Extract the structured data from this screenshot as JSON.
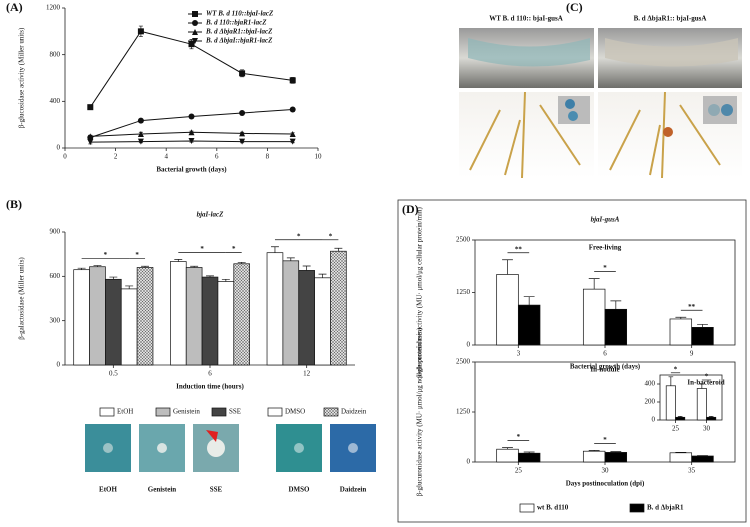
{
  "panel_labels": [
    "(A)",
    "(B)",
    "(C)",
    "(D)"
  ],
  "panel_c": {
    "captions": [
      "WT B. d 110:: bjaI-gusA",
      "B. d ΔbjaR1:: bjaI-gusA"
    ]
  },
  "panel_b_photos": {
    "captions": [
      "EtOH",
      "Genistein",
      "SSE",
      "DMSO",
      "Daidzein"
    ]
  },
  "chart_data": [
    {
      "type": "line",
      "xlabel": "Bacterial growth  (days)",
      "ylabel": "β-glucosidase activity (Miller units)",
      "x": [
        1,
        3,
        5,
        7,
        9
      ],
      "xlim": [
        0,
        10
      ],
      "xticks": [
        0,
        2,
        4,
        6,
        8,
        10
      ],
      "ylim": [
        0,
        1200
      ],
      "yticks": [
        0,
        400,
        800,
        1200
      ],
      "legend": "upper right",
      "series": [
        {
          "name": "WT B. d 110::bjaI-lacZ",
          "marker": "square",
          "color": "#111111",
          "values": [
            350,
            1000,
            890,
            640,
            580
          ],
          "errors": [
            15,
            45,
            40,
            30,
            25
          ]
        },
        {
          "name": "B. d 110::bjaR1-lacZ",
          "marker": "circle",
          "color": "#111111",
          "values": [
            90,
            235,
            270,
            300,
            330
          ],
          "errors": [
            10,
            10,
            15,
            10,
            10
          ]
        },
        {
          "name": "B. d ΔbjaR1::bjaI-lacZ",
          "marker": "triangle-up",
          "color": "#111111",
          "values": [
            100,
            120,
            135,
            125,
            120
          ],
          "errors": [
            10,
            15,
            10,
            10,
            10
          ]
        },
        {
          "name": "B. d ΔbjaI::bjaR1-lacZ",
          "marker": "triangle-down",
          "color": "#111111",
          "values": [
            50,
            55,
            60,
            55,
            55
          ],
          "errors": [
            15,
            10,
            10,
            10,
            10
          ]
        }
      ]
    },
    {
      "type": "bar",
      "title": "bjaI-lacZ",
      "xlabel": "Induction time (hours)",
      "ylabel": "β-galactosidase (Miller units)",
      "categories": [
        "0.5",
        "6",
        "12"
      ],
      "ylim": [
        0,
        900
      ],
      "yticks": [
        0,
        300,
        600,
        900
      ],
      "legend": "below",
      "annotations": [
        "*",
        "*",
        "*",
        "*",
        "*",
        "*"
      ],
      "series": [
        {
          "name": "EtOH",
          "color": "#ffffff",
          "values": [
            645,
            700,
            760
          ],
          "errors": [
            10,
            15,
            40
          ]
        },
        {
          "name": "Genistein",
          "color": "#bdbdbd",
          "values": [
            665,
            660,
            705
          ],
          "errors": [
            8,
            8,
            20
          ]
        },
        {
          "name": "SSE",
          "color": "#444444",
          "values": [
            580,
            595,
            640
          ],
          "errors": [
            15,
            8,
            30
          ]
        },
        {
          "name": "DMSO",
          "color": "#ffffff",
          "values": [
            515,
            565,
            590
          ],
          "errors": [
            20,
            15,
            25
          ]
        },
        {
          "name": "Daidzein",
          "color": "#dddddd",
          "pattern": "crosshatch",
          "values": [
            660,
            685,
            770
          ],
          "errors": [
            8,
            10,
            20
          ]
        }
      ]
    },
    {
      "type": "bar",
      "title": "bjaI-gusA",
      "subtitle": "Free-living",
      "xlabel": "Bacterial growth (days)",
      "ylabel": "β-glucuronidase activity (MU· μmol/μg cellular protein/min)",
      "categories": [
        "3",
        "6",
        "9"
      ],
      "ylim": [
        0,
        2500
      ],
      "yticks": [
        0,
        1250,
        2500
      ],
      "legend": "below",
      "annotations": [
        "**",
        "*",
        "**"
      ],
      "series": [
        {
          "name": "wt B. d110",
          "color": "#ffffff",
          "values": [
            1680,
            1330,
            620
          ],
          "errors": [
            350,
            250,
            40
          ]
        },
        {
          "name": "B. d ΔbjaR1",
          "color": "#000000",
          "values": [
            950,
            850,
            420
          ],
          "errors": [
            200,
            200,
            70
          ]
        }
      ]
    },
    {
      "type": "bar",
      "subtitle": "In-nodule",
      "xlabel": "Days postinoculation (dpi)",
      "ylabel": "β-glucuronidase activity (MU· μmol/μg nodule protein/min)",
      "categories": [
        "25",
        "30",
        "35"
      ],
      "ylim": [
        0,
        2500
      ],
      "yticks": [
        0,
        1250,
        2500
      ],
      "annotations": [
        "*",
        "*"
      ],
      "series": [
        {
          "color": "#ffffff",
          "values": [
            320,
            270,
            230
          ],
          "errors": [
            40,
            20,
            10
          ]
        },
        {
          "color": "#000000",
          "values": [
            220,
            240,
            150
          ],
          "errors": [
            30,
            20,
            10
          ]
        }
      ]
    },
    {
      "type": "bar",
      "subtitle": "In-bacteroid",
      "categories": [
        "25",
        "30"
      ],
      "ylim": [
        0,
        500
      ],
      "yticks": [
        0,
        200,
        400
      ],
      "annotations": [
        "*",
        "*"
      ],
      "series": [
        {
          "color": "#ffffff",
          "values": [
            380,
            350
          ],
          "errors": [
            100,
            50
          ]
        },
        {
          "color": "#000000",
          "values": [
            30,
            30
          ],
          "errors": [
            10,
            10
          ]
        }
      ]
    }
  ]
}
